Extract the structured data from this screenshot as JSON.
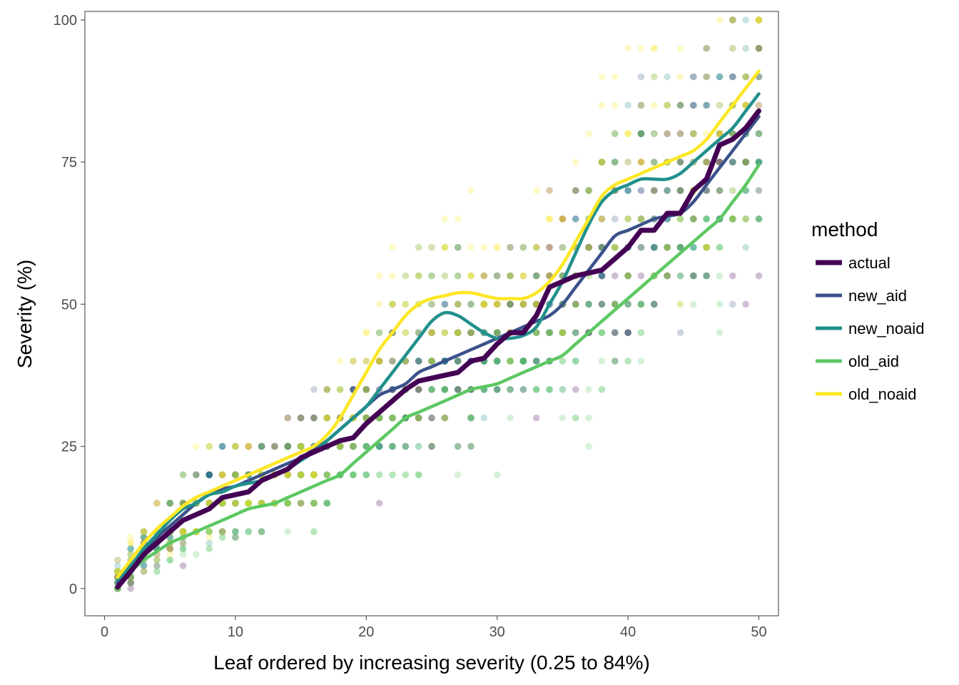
{
  "chart_data": {
    "type": "scatter",
    "xlabel": "Leaf ordered by increasing severity (0.25 to 84%)",
    "ylabel": "Severity (%)",
    "xlim": [
      -1.5,
      51.5
    ],
    "ylim": [
      -4.8,
      101.5
    ],
    "x_ticks": [
      0,
      10,
      20,
      30,
      40,
      50
    ],
    "y_ticks": [
      0,
      25,
      50,
      75,
      100
    ],
    "x_tick_labels": [
      "0",
      "10",
      "20",
      "30",
      "40",
      "50"
    ],
    "y_tick_labels": [
      "0",
      "25",
      "50",
      "75",
      "100"
    ],
    "grid": false,
    "points_alpha": 0.25,
    "legend": {
      "title": "method",
      "position": "right",
      "entries": [
        "actual",
        "new_aid",
        "new_noaid",
        "old_aid",
        "old_noaid"
      ]
    },
    "colors": {
      "actual": "#440154",
      "new_aid": "#3b528b",
      "new_noaid": "#21908c",
      "old_aid": "#5dc863",
      "old_noaid": "#fde725"
    },
    "x": [
      1,
      2,
      3,
      4,
      5,
      6,
      7,
      8,
      9,
      10,
      11,
      12,
      13,
      14,
      15,
      16,
      17,
      18,
      19,
      20,
      21,
      22,
      23,
      24,
      25,
      26,
      27,
      28,
      29,
      30,
      31,
      32,
      33,
      34,
      35,
      36,
      37,
      38,
      39,
      40,
      41,
      42,
      43,
      44,
      45,
      46,
      47,
      48,
      49,
      50
    ],
    "series": [
      {
        "name": "actual",
        "values": [
          0.25,
          3,
          6,
          8,
          10,
          12,
          13,
          14,
          16,
          16.5,
          17,
          19,
          20,
          21,
          23,
          24,
          25,
          26,
          26.5,
          29,
          31,
          33,
          35,
          36.5,
          37,
          37.5,
          38,
          40,
          40.5,
          43,
          45,
          45,
          48,
          53,
          54,
          55,
          55.5,
          56,
          58,
          60,
          63,
          63,
          66,
          66,
          70,
          72,
          78,
          79,
          81,
          84
        ]
      },
      {
        "name": "new_aid",
        "values": [
          1,
          4,
          6.5,
          9,
          11,
          13,
          15,
          16.5,
          17.5,
          18,
          19,
          20,
          21,
          22,
          23,
          24.5,
          26,
          28,
          30,
          32,
          34,
          35,
          36,
          38,
          39,
          40,
          41,
          42,
          43,
          44,
          45,
          46,
          47,
          48,
          50,
          53,
          56,
          59,
          62,
          63,
          64,
          65,
          65.5,
          66,
          68,
          71,
          74,
          77,
          80,
          83
        ]
      },
      {
        "name": "new_noaid",
        "values": [
          1.5,
          4,
          7,
          9.5,
          12,
          14,
          15,
          16.5,
          17,
          18,
          18.5,
          19,
          20,
          21,
          22.5,
          24,
          26,
          28,
          30,
          32,
          35,
          38,
          41,
          44,
          47,
          48.5,
          48,
          46.5,
          45,
          44,
          44,
          44.5,
          46,
          50,
          54,
          59,
          64,
          68,
          70,
          71,
          72,
          72,
          72,
          73,
          75,
          77,
          79,
          81,
          84,
          87
        ]
      },
      {
        "name": "old_aid",
        "values": [
          0.5,
          3,
          5,
          6.5,
          8,
          9,
          10,
          11,
          12,
          13,
          14,
          14.5,
          15,
          16,
          17,
          18,
          19,
          20,
          22,
          24,
          26,
          28,
          30,
          31,
          32,
          33,
          34,
          35,
          35.5,
          36,
          37,
          38,
          39,
          40,
          41,
          43,
          45,
          47,
          49,
          51,
          53,
          55,
          57,
          59,
          61,
          63,
          65,
          68,
          71,
          74.5
        ]
      },
      {
        "name": "old_noaid",
        "values": [
          2,
          5,
          8,
          10.5,
          12.5,
          14.5,
          16,
          17,
          18,
          19,
          20,
          21,
          22,
          23,
          24,
          25,
          27,
          30,
          34,
          38,
          42,
          45,
          48,
          50,
          51,
          51.5,
          52,
          52,
          51.5,
          51,
          51,
          51,
          52,
          54,
          57,
          61,
          65,
          69,
          71,
          72,
          73,
          74,
          75,
          76,
          77,
          79,
          82,
          85,
          88,
          91
        ]
      }
    ]
  }
}
